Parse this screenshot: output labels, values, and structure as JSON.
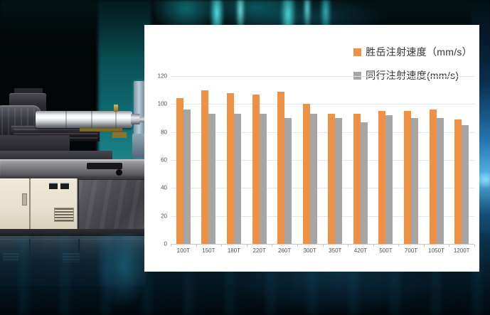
{
  "scene": {
    "description": "injection molding machine promo image with comparison bar chart",
    "background_color": "#030606",
    "aurora_color": "#3adede",
    "glow_color": "#0d4a66",
    "panel_color": "#ffffff"
  },
  "machine": {
    "kind": "injection-molding-machine",
    "body_color": "#e9e3cf",
    "barrel_color": "#d9dde0"
  },
  "chart_data": {
    "type": "bar",
    "title": "",
    "xlabel": "",
    "ylabel": "",
    "categories": [
      "100T",
      "150T",
      "180T",
      "220T",
      "260T",
      "300T",
      "350T",
      "420T",
      "500T",
      "700T",
      "1050T",
      "1200T"
    ],
    "series": [
      {
        "name": "胜岳注射速度（mm/s）",
        "color": "#EF9144",
        "values": [
          104,
          110,
          108,
          107,
          109,
          100,
          93,
          93,
          95,
          95,
          96,
          89
        ]
      },
      {
        "name": "同行注射速度(mm/s)",
        "color": "#A6A6A6",
        "values": [
          96,
          93,
          93,
          93,
          90,
          93,
          90,
          87,
          92,
          90,
          90,
          85
        ]
      }
    ],
    "ylim": [
      0,
      120
    ],
    "yticks": [
      0,
      20,
      40,
      60,
      80,
      100,
      120
    ],
    "grid": true,
    "legend_position": "top-right"
  }
}
